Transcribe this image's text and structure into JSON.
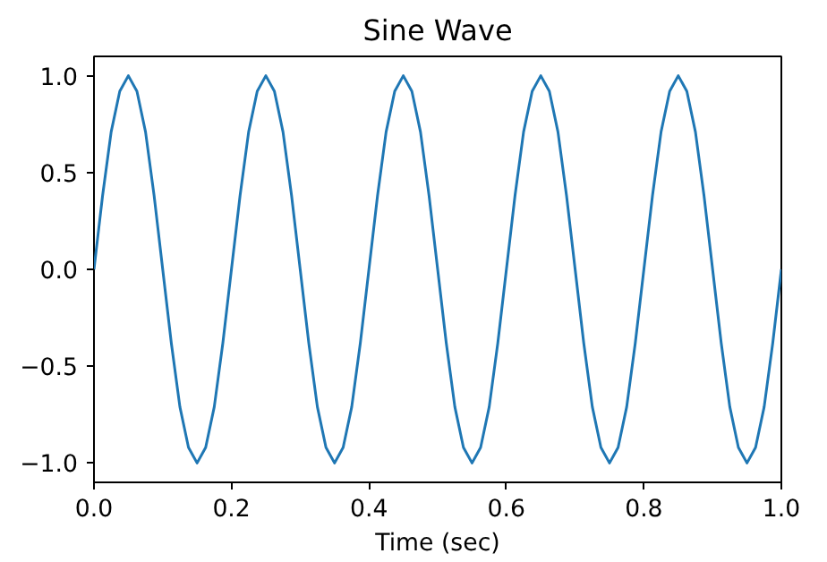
{
  "chart_data": {
    "type": "line",
    "title": "Sine Wave",
    "xlabel": "Time (sec)",
    "x": [
      0,
      0.0125,
      0.025,
      0.0375,
      0.05,
      0.0625,
      0.075,
      0.0875,
      0.1,
      0.1125,
      0.125,
      0.1375,
      0.15,
      0.1625,
      0.175,
      0.1875,
      0.2,
      0.2125,
      0.225,
      0.2375,
      0.25,
      0.2625,
      0.275,
      0.2875,
      0.3,
      0.3125,
      0.325,
      0.3375,
      0.35,
      0.3625,
      0.375,
      0.3875,
      0.4,
      0.4125,
      0.425,
      0.4375,
      0.45,
      0.4625,
      0.475,
      0.4875,
      0.5,
      0.5125,
      0.525,
      0.5375,
      0.55,
      0.5625,
      0.575,
      0.5875,
      0.6,
      0.6125,
      0.625,
      0.6375,
      0.65,
      0.6625,
      0.675,
      0.6875,
      0.7,
      0.7125,
      0.725,
      0.7375,
      0.75,
      0.7625,
      0.775,
      0.7875,
      0.8,
      0.8125,
      0.825,
      0.8375,
      0.85,
      0.8625,
      0.875,
      0.8875,
      0.9,
      0.9125,
      0.925,
      0.9375,
      0.95,
      0.9625,
      0.975,
      0.9875,
      1.0
    ],
    "series": [
      {
        "color": "#1f77b4",
        "values": [
          0,
          0.38,
          0.71,
          0.92,
          1,
          0.92,
          0.71,
          0.38,
          0,
          -0.38,
          -0.71,
          -0.92,
          -1,
          -0.92,
          -0.71,
          -0.38,
          0,
          0.38,
          0.71,
          0.92,
          1,
          0.92,
          0.71,
          0.38,
          0,
          -0.38,
          -0.71,
          -0.92,
          -1,
          -0.92,
          -0.71,
          -0.38,
          0,
          0.38,
          0.71,
          0.92,
          1,
          0.92,
          0.71,
          0.38,
          0,
          -0.38,
          -0.71,
          -0.92,
          -1,
          -0.92,
          -0.71,
          -0.38,
          0,
          0.38,
          0.71,
          0.92,
          1,
          0.92,
          0.71,
          0.38,
          0,
          -0.38,
          -0.71,
          -0.92,
          -1,
          -0.92,
          -0.71,
          -0.38,
          0,
          0.38,
          0.71,
          0.92,
          1,
          0.92,
          0.71,
          0.38,
          0,
          -0.38,
          -0.71,
          -0.92,
          -1,
          -0.92,
          -0.71,
          -0.38,
          0
        ]
      }
    ],
    "xlim": [
      0,
      1
    ],
    "ylim": [
      -1.1,
      1.1
    ],
    "xticks": [
      {
        "value": 0,
        "label": "0.0"
      },
      {
        "value": 0.2,
        "label": "0.2"
      },
      {
        "value": 0.4,
        "label": "0.4"
      },
      {
        "value": 0.6,
        "label": "0.6"
      },
      {
        "value": 0.8,
        "label": "0.8"
      },
      {
        "value": 1,
        "label": "1.0"
      }
    ],
    "yticks": [
      {
        "value": -1,
        "label": "−1.0"
      },
      {
        "value": -0.5,
        "label": "−0.5"
      },
      {
        "value": 0,
        "label": "0.0"
      },
      {
        "value": 0.5,
        "label": "0.5"
      },
      {
        "value": 1,
        "label": "1.0"
      }
    ],
    "line_style": "solid",
    "marker": "none",
    "grid": false
  }
}
